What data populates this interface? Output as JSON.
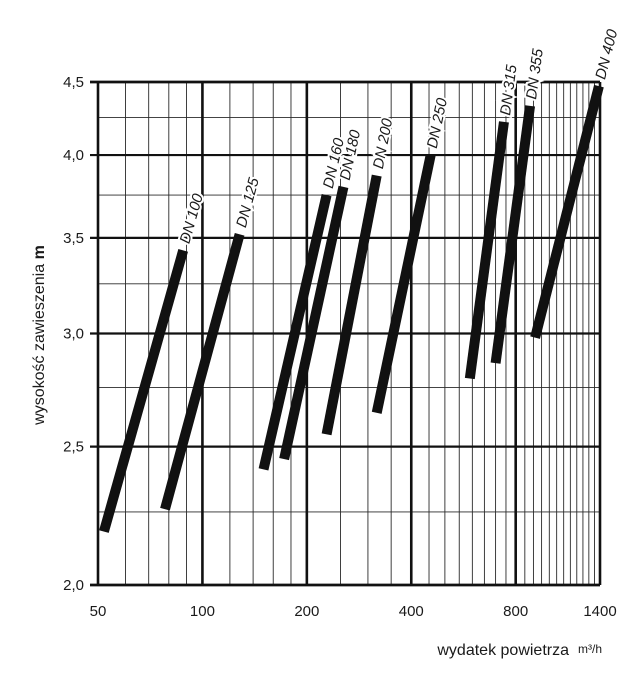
{
  "chart_data": {
    "type": "line",
    "x_scale": "log",
    "y_scale": "log",
    "xlim": [
      50,
      1400
    ],
    "ylim": [
      2.0,
      4.5
    ],
    "x_ticks": [
      "50",
      "100",
      "200",
      "400",
      "800",
      "1400"
    ],
    "x_tick_values": [
      50,
      100,
      200,
      400,
      800,
      1400
    ],
    "y_ticks": [
      "2,0",
      "2,5",
      "3,0",
      "3,5",
      "4,0",
      "4,5"
    ],
    "y_tick_values": [
      2.0,
      2.5,
      3.0,
      3.5,
      4.0,
      4.5
    ],
    "xlabel": "wydatek powietrza",
    "xunit": "m³/h",
    "ylabel": "wysokość zawieszenia",
    "yunit": "m",
    "grid": true,
    "series": [
      {
        "name": "DN 100",
        "x": [
          52,
          88
        ],
        "y": [
          2.18,
          3.43
        ]
      },
      {
        "name": "DN 125",
        "x": [
          78,
          128
        ],
        "y": [
          2.26,
          3.52
        ]
      },
      {
        "name": "DN 160",
        "x": [
          150,
          228
        ],
        "y": [
          2.41,
          3.75
        ]
      },
      {
        "name": "DN 180",
        "x": [
          172,
          255
        ],
        "y": [
          2.45,
          3.8
        ]
      },
      {
        "name": "DN 200",
        "x": [
          228,
          318
        ],
        "y": [
          2.55,
          3.87
        ]
      },
      {
        "name": "DN 250",
        "x": [
          318,
          455
        ],
        "y": [
          2.64,
          4.0
        ]
      },
      {
        "name": "DN 315",
        "x": [
          590,
          740
        ],
        "y": [
          2.79,
          4.22
        ]
      },
      {
        "name": "DN 355",
        "x": [
          700,
          880
        ],
        "y": [
          2.86,
          4.33
        ]
      },
      {
        "name": "DN 400",
        "x": [
          910,
          1390
        ],
        "y": [
          2.98,
          4.47
        ]
      }
    ]
  }
}
